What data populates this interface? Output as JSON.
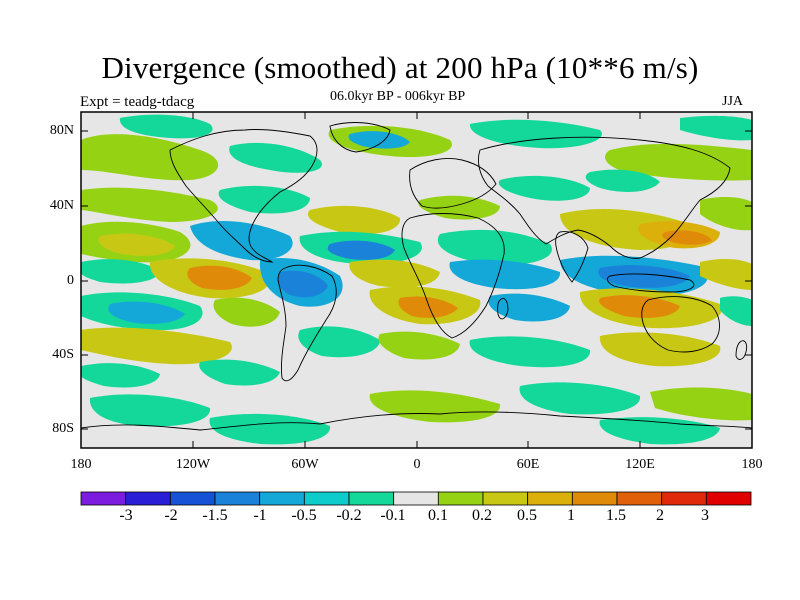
{
  "header": {
    "title": "Divergence (smoothed) at 200 hPa (10**6 m/s)",
    "experiment": "Expt = teadg-tdacg",
    "period": "06.0kyr BP - 006kyr BP",
    "season": "JJA"
  },
  "axes": {
    "lat_labels": [
      "80N",
      "40N",
      "0",
      "40S",
      "80S"
    ],
    "lon_labels": [
      "180",
      "120W",
      "60W",
      "0",
      "60E",
      "120E",
      "180"
    ]
  },
  "colorbar": {
    "labels": [
      "-3",
      "-2",
      "-1.5",
      "-1",
      "-0.5",
      "-0.2",
      "-0.1",
      "0.1",
      "0.2",
      "0.5",
      "1",
      "1.5",
      "2",
      "3"
    ],
    "colors": [
      "#7c1cde",
      "#2a1fd6",
      "#1652d6",
      "#1a82d8",
      "#14a8d8",
      "#0ecccc",
      "#14d89a",
      "#e6e6e6",
      "#96d214",
      "#c8c814",
      "#dcb00a",
      "#e08a0a",
      "#e0600a",
      "#e0280a",
      "#e00000"
    ]
  }
}
